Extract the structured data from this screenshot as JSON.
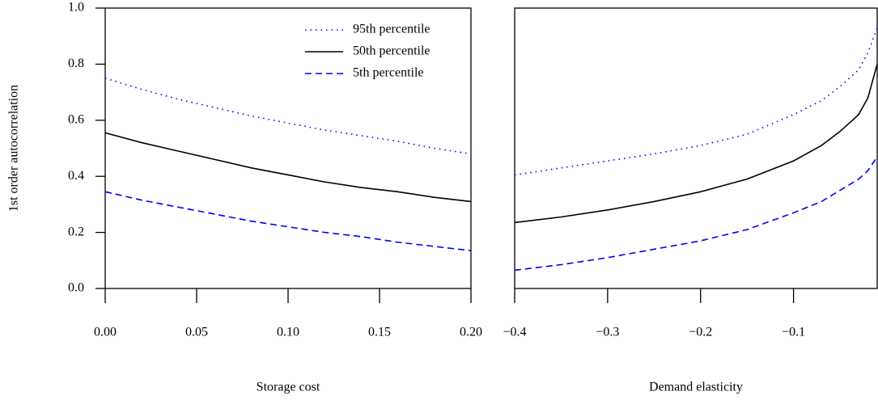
{
  "chart_data": [
    {
      "type": "line",
      "x_label": "Storage cost",
      "y_label": "1st order autocorrelation",
      "x": [
        0,
        0.02,
        0.04,
        0.06,
        0.08,
        0.1,
        0.12,
        0.14,
        0.16,
        0.18,
        0.2
      ],
      "series": [
        {
          "name": "95th percentile",
          "color": "#0000ee",
          "dash": "dotted",
          "values": [
            0.75,
            0.71,
            0.675,
            0.645,
            0.615,
            0.59,
            0.565,
            0.545,
            0.525,
            0.5,
            0.48
          ]
        },
        {
          "name": "50th percentile",
          "color": "#000000",
          "dash": "solid",
          "values": [
            0.555,
            0.52,
            0.49,
            0.46,
            0.43,
            0.405,
            0.38,
            0.36,
            0.345,
            0.325,
            0.31
          ]
        },
        {
          "name": "5th percentile",
          "color": "#0000ee",
          "dash": "dashed",
          "values": [
            0.345,
            0.315,
            0.29,
            0.265,
            0.24,
            0.22,
            0.2,
            0.185,
            0.165,
            0.15,
            0.135
          ]
        }
      ],
      "xlim": [
        0,
        0.2
      ],
      "xticks": [
        {
          "value": 0,
          "label": "0.00"
        },
        {
          "value": 0.05,
          "label": "0.05"
        },
        {
          "value": 0.1,
          "label": "0.10"
        },
        {
          "value": 0.15,
          "label": "0.15"
        },
        {
          "value": 0.2,
          "label": "0.20"
        }
      ],
      "ylim": [
        0,
        1
      ],
      "yticks": [
        {
          "value": 0,
          "label": "0.0"
        },
        0.2,
        0.4,
        0.6,
        0.8,
        {
          "value": 1,
          "label": "1.0"
        }
      ],
      "legend": "top-right"
    },
    {
      "type": "line",
      "x_label": "Demand elasticity",
      "x": [
        -0.4,
        -0.35,
        -0.3,
        -0.25,
        -0.2,
        -0.15,
        -0.1,
        -0.07,
        -0.05,
        -0.03,
        -0.02,
        -0.01
      ],
      "series": [
        {
          "color": "#0000ee",
          "dash": "dotted",
          "values": [
            0.405,
            0.43,
            0.455,
            0.48,
            0.51,
            0.55,
            0.62,
            0.67,
            0.72,
            0.78,
            0.84,
            0.93
          ]
        },
        {
          "color": "#000000",
          "dash": "solid",
          "values": [
            0.235,
            0.255,
            0.28,
            0.31,
            0.345,
            0.39,
            0.455,
            0.51,
            0.56,
            0.62,
            0.68,
            0.8
          ]
        },
        {
          "color": "#0000ee",
          "dash": "dashed",
          "values": [
            0.065,
            0.085,
            0.11,
            0.14,
            0.17,
            0.21,
            0.27,
            0.31,
            0.35,
            0.39,
            0.42,
            0.47
          ]
        }
      ],
      "xlim": [
        -0.4,
        -0.01
      ],
      "xticks": [
        {
          "value": -0.4,
          "label": "−0.4"
        },
        {
          "value": -0.3,
          "label": "−0.3"
        },
        {
          "value": -0.2,
          "label": "−0.2"
        },
        {
          "value": -0.1,
          "label": "−0.1"
        }
      ],
      "ylim": [
        0,
        1
      ]
    }
  ]
}
